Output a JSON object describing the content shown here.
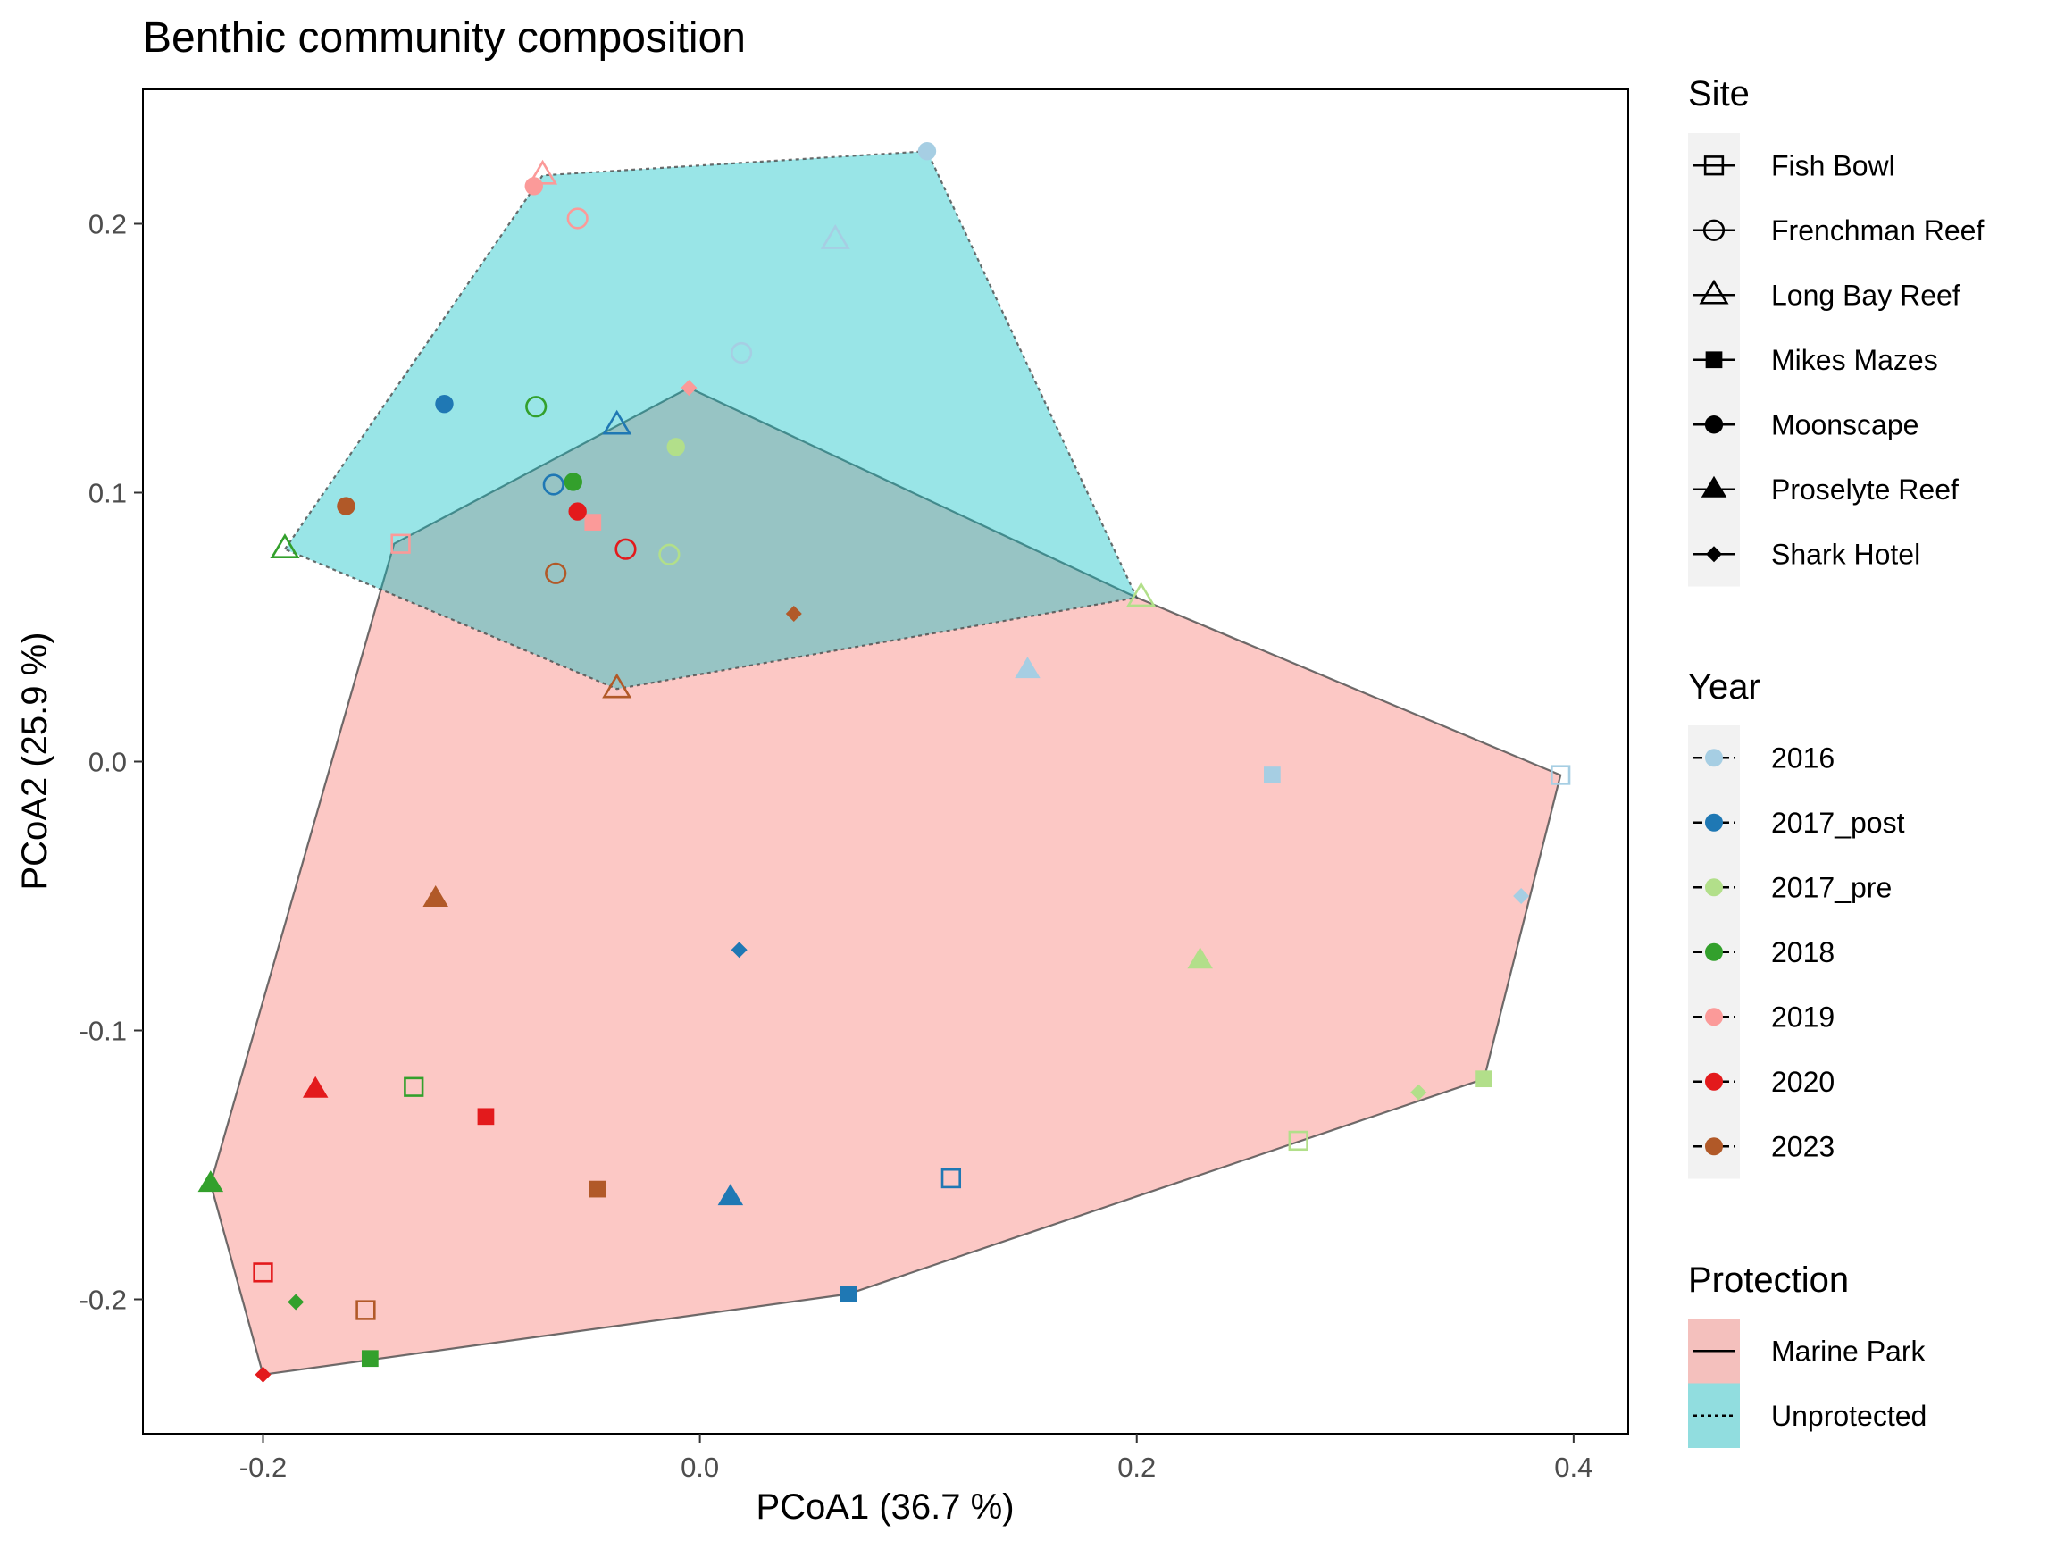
{
  "chart_data": {
    "type": "scatter",
    "title": "Benthic community composition",
    "xlabel": "PCoA1 (36.7 %)",
    "ylabel": "PCoA2 (25.9 %)",
    "xlim": [
      -0.255,
      0.425
    ],
    "ylim": [
      -0.25,
      0.25
    ],
    "xticks": [
      -0.2,
      0.0,
      0.2,
      0.4
    ],
    "xtick_labels": [
      "-0.2",
      "0.0",
      "0.2",
      "0.4"
    ],
    "yticks": [
      -0.2,
      -0.1,
      0.0,
      0.1,
      0.2
    ],
    "ytick_labels": [
      "-0.2",
      "-0.1",
      "0.0",
      "0.1",
      "0.2"
    ],
    "grid": false,
    "legend_position": "right",
    "legend": {
      "site_title": "Site",
      "sites": [
        {
          "name": "Fish Bowl",
          "shape": "open-square"
        },
        {
          "name": "Frenchman Reef",
          "shape": "open-circle"
        },
        {
          "name": "Long Bay Reef",
          "shape": "open-triangle"
        },
        {
          "name": "Mikes Mazes",
          "shape": "filled-square"
        },
        {
          "name": "Moonscape",
          "shape": "filled-circle"
        },
        {
          "name": "Proselyte Reef",
          "shape": "filled-triangle"
        },
        {
          "name": "Shark Hotel",
          "shape": "filled-diamond"
        }
      ],
      "year_title": "Year",
      "years": [
        {
          "name": "2016",
          "color": "#A6CEE3"
        },
        {
          "name": "2017_post",
          "color": "#1F78B4"
        },
        {
          "name": "2017_pre",
          "color": "#B2DF8A"
        },
        {
          "name": "2018",
          "color": "#33A02C"
        },
        {
          "name": "2019",
          "color": "#FB9A99"
        },
        {
          "name": "2020",
          "color": "#E31A1C"
        },
        {
          "name": "2023",
          "color": "#B15928"
        }
      ],
      "protection_title": "Protection",
      "protection": [
        {
          "name": "Marine Park",
          "fill": "#F8766D",
          "line": "solid"
        },
        {
          "name": "Unprotected",
          "fill": "#00BFC4",
          "line": "dotted"
        }
      ]
    },
    "hulls": [
      {
        "name": "Marine Park",
        "fill": "#F8766D",
        "line": "solid",
        "points": [
          [
            -0.14,
            0.081
          ],
          [
            -0.005,
            0.139
          ],
          [
            0.2,
            0.061
          ],
          [
            0.394,
            -0.005
          ],
          [
            0.359,
            -0.118
          ],
          [
            0.068,
            -0.198
          ],
          [
            -0.2,
            -0.228
          ],
          [
            -0.224,
            -0.157
          ]
        ]
      },
      {
        "name": "Unprotected",
        "fill": "#00BFC4",
        "line": "dotted",
        "points": [
          [
            -0.19,
            0.079
          ],
          [
            -0.072,
            0.218
          ],
          [
            0.104,
            0.227
          ],
          [
            0.2,
            0.061
          ],
          [
            -0.038,
            0.027
          ]
        ]
      }
    ],
    "points": [
      {
        "site": "Fish Bowl",
        "year": "2016",
        "x": 0.394,
        "y": -0.005
      },
      {
        "site": "Fish Bowl",
        "year": "2017_post",
        "x": 0.115,
        "y": -0.155
      },
      {
        "site": "Fish Bowl",
        "year": "2017_pre",
        "x": 0.274,
        "y": -0.141
      },
      {
        "site": "Fish Bowl",
        "year": "2018",
        "x": -0.131,
        "y": -0.121
      },
      {
        "site": "Fish Bowl",
        "year": "2019",
        "x": -0.137,
        "y": 0.081
      },
      {
        "site": "Fish Bowl",
        "year": "2020",
        "x": -0.2,
        "y": -0.19
      },
      {
        "site": "Fish Bowl",
        "year": "2023",
        "x": -0.153,
        "y": -0.204
      },
      {
        "site": "Frenchman Reef",
        "year": "2016",
        "x": 0.019,
        "y": 0.152
      },
      {
        "site": "Frenchman Reef",
        "year": "2017_post",
        "x": -0.067,
        "y": 0.103
      },
      {
        "site": "Frenchman Reef",
        "year": "2017_pre",
        "x": -0.014,
        "y": 0.077
      },
      {
        "site": "Frenchman Reef",
        "year": "2018",
        "x": -0.075,
        "y": 0.132
      },
      {
        "site": "Frenchman Reef",
        "year": "2019",
        "x": -0.056,
        "y": 0.202
      },
      {
        "site": "Frenchman Reef",
        "year": "2020",
        "x": -0.034,
        "y": 0.079
      },
      {
        "site": "Frenchman Reef",
        "year": "2023",
        "x": -0.066,
        "y": 0.07
      },
      {
        "site": "Long Bay Reef",
        "year": "2016",
        "x": 0.062,
        "y": 0.194
      },
      {
        "site": "Long Bay Reef",
        "year": "2017_post",
        "x": -0.038,
        "y": 0.125
      },
      {
        "site": "Long Bay Reef",
        "year": "2017_pre",
        "x": 0.202,
        "y": 0.061
      },
      {
        "site": "Long Bay Reef",
        "year": "2018",
        "x": -0.19,
        "y": 0.079
      },
      {
        "site": "Long Bay Reef",
        "year": "2019",
        "x": -0.072,
        "y": 0.218
      },
      {
        "site": "Long Bay Reef",
        "year": "2023",
        "x": -0.038,
        "y": 0.027
      },
      {
        "site": "Mikes Mazes",
        "year": "2016",
        "x": 0.262,
        "y": -0.005
      },
      {
        "site": "Mikes Mazes",
        "year": "2017_post",
        "x": 0.068,
        "y": -0.198
      },
      {
        "site": "Mikes Mazes",
        "year": "2017_pre",
        "x": 0.359,
        "y": -0.118
      },
      {
        "site": "Mikes Mazes",
        "year": "2018",
        "x": -0.151,
        "y": -0.222
      },
      {
        "site": "Mikes Mazes",
        "year": "2019",
        "x": -0.049,
        "y": 0.089
      },
      {
        "site": "Mikes Mazes",
        "year": "2020",
        "x": -0.098,
        "y": -0.132
      },
      {
        "site": "Mikes Mazes",
        "year": "2023",
        "x": -0.047,
        "y": -0.159
      },
      {
        "site": "Moonscape",
        "year": "2016",
        "x": 0.104,
        "y": 0.227
      },
      {
        "site": "Moonscape",
        "year": "2017_post",
        "x": -0.117,
        "y": 0.133
      },
      {
        "site": "Moonscape",
        "year": "2017_pre",
        "x": -0.011,
        "y": 0.117
      },
      {
        "site": "Moonscape",
        "year": "2018",
        "x": -0.058,
        "y": 0.104
      },
      {
        "site": "Moonscape",
        "year": "2019",
        "x": -0.076,
        "y": 0.214
      },
      {
        "site": "Moonscape",
        "year": "2020",
        "x": -0.056,
        "y": 0.093
      },
      {
        "site": "Moonscape",
        "year": "2023",
        "x": -0.162,
        "y": 0.095
      },
      {
        "site": "Proselyte Reef",
        "year": "2016",
        "x": 0.15,
        "y": 0.034
      },
      {
        "site": "Proselyte Reef",
        "year": "2017_post",
        "x": 0.014,
        "y": -0.162
      },
      {
        "site": "Proselyte Reef",
        "year": "2017_pre",
        "x": 0.229,
        "y": -0.074
      },
      {
        "site": "Proselyte Reef",
        "year": "2018",
        "x": -0.224,
        "y": -0.157
      },
      {
        "site": "Proselyte Reef",
        "year": "2020",
        "x": -0.176,
        "y": -0.122
      },
      {
        "site": "Proselyte Reef",
        "year": "2023",
        "x": -0.121,
        "y": -0.051
      },
      {
        "site": "Shark Hotel",
        "year": "2016",
        "x": 0.376,
        "y": -0.05
      },
      {
        "site": "Shark Hotel",
        "year": "2017_post",
        "x": 0.018,
        "y": -0.07
      },
      {
        "site": "Shark Hotel",
        "year": "2017_pre",
        "x": 0.329,
        "y": -0.123
      },
      {
        "site": "Shark Hotel",
        "year": "2018",
        "x": -0.185,
        "y": -0.201
      },
      {
        "site": "Shark Hotel",
        "year": "2019",
        "x": -0.005,
        "y": 0.139
      },
      {
        "site": "Shark Hotel",
        "year": "2020",
        "x": -0.2,
        "y": -0.228
      },
      {
        "site": "Shark Hotel",
        "year": "2023",
        "x": 0.043,
        "y": 0.055
      }
    ]
  }
}
